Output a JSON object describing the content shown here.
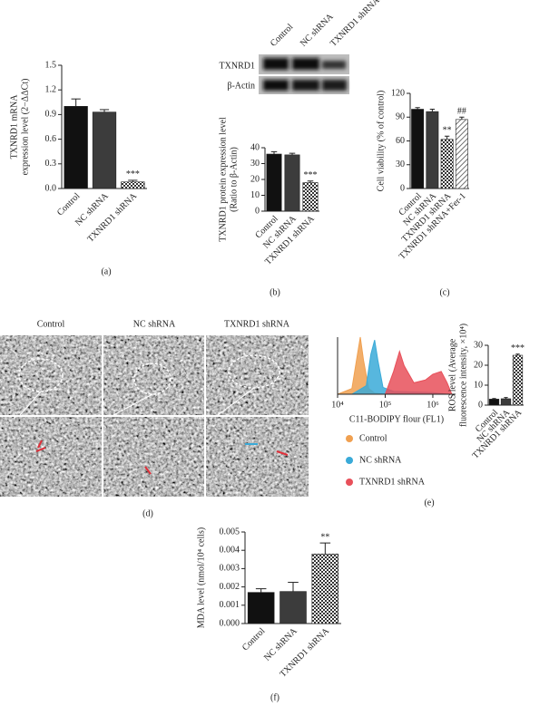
{
  "chart_data": [
    {
      "type": "bar",
      "caption": "(a)",
      "categories": [
        "Control",
        "NC shRNA",
        "TXNRD1 shRNA"
      ],
      "values": [
        1.0,
        0.93,
        0.08
      ],
      "errors": [
        0.09,
        0.03,
        0.02
      ],
      "colors": [
        "#111111",
        "#3c3c3c",
        "checker"
      ],
      "annotations": [
        null,
        null,
        "***"
      ],
      "ylabel": [
        "TXNRD1 mRNA",
        "expression level (2−ΔΔCt)"
      ],
      "ylim": [
        0,
        1.5
      ],
      "yticks": [
        {
          "value": 0,
          "label": "0.0"
        },
        0.3,
        0.6,
        0.9,
        1.2,
        1.5
      ]
    },
    {
      "type": "bar",
      "caption": "(b)",
      "blot_lanes": [
        "Control",
        "NC shRNA",
        "TXNRD1 shRNA"
      ],
      "blot_bands": [
        "TXNRD1",
        "β-Actin"
      ],
      "categories": [
        "Control",
        "NC shRNA",
        "TXNRD1 shRNA"
      ],
      "values": [
        36,
        35.5,
        18
      ],
      "errors": [
        1.5,
        1,
        1
      ],
      "colors": [
        "#111111",
        "#3c3c3c",
        "checker"
      ],
      "annotations": [
        null,
        null,
        "***"
      ],
      "ylabel": [
        "TXNRD1 protein expression level",
        "(Ratio to β-Actin)"
      ],
      "ylim": [
        0,
        40
      ],
      "yticks": [
        0,
        10,
        20,
        30,
        40
      ]
    },
    {
      "type": "bar",
      "caption": "(c)",
      "categories": [
        "Control",
        "NC shRNA",
        "TXNRD1 shRNA",
        "TXNRD1 shRNA+Fer-1"
      ],
      "values": [
        100,
        97,
        62,
        87
      ],
      "errors": [
        2,
        3,
        4,
        3
      ],
      "colors": [
        "#111111",
        "#3c3c3c",
        "checker",
        "hatch"
      ],
      "annotations": [
        null,
        null,
        "**",
        "##"
      ],
      "ylabel": [
        "Cell viability (% of control)"
      ],
      "ylim": [
        0,
        120
      ],
      "yticks": [
        0,
        30,
        60,
        90,
        120
      ]
    },
    {
      "type": "histogram-lines",
      "caption": "(e)",
      "xlabel": "C11-BODIPY flour (FL1)",
      "xscale": "log",
      "xlim": [
        10000,
        3000000
      ],
      "xticks": [
        {
          "value": 10000,
          "label": "10⁴"
        },
        {
          "value": 100000,
          "label": "10⁵"
        },
        {
          "value": 1000000,
          "label": "10⁶"
        }
      ],
      "ylim": [
        0,
        100
      ],
      "series": [
        {
          "name": "Control",
          "color": "#f0a050",
          "x": [
            10000,
            20000,
            25000,
            30000,
            35000,
            45000,
            60000,
            100000
          ],
          "values": [
            0,
            10,
            60,
            100,
            60,
            10,
            2,
            0
          ]
        },
        {
          "name": "NC shRNA",
          "color": "#3aaad8",
          "x": [
            20000,
            40000,
            50000,
            60000,
            70000,
            90000,
            150000,
            1000000,
            2000000
          ],
          "values": [
            0,
            15,
            70,
            95,
            60,
            12,
            5,
            3,
            0
          ]
        },
        {
          "name": "TXNRD1 shRNA",
          "color": "#e8505a",
          "x": [
            100000,
            150000,
            200000,
            250000,
            400000,
            700000,
            1000000,
            1500000,
            2000000,
            2500000
          ],
          "values": [
            0,
            40,
            75,
            50,
            20,
            25,
            35,
            40,
            20,
            0
          ]
        }
      ]
    },
    {
      "type": "bar",
      "categories": [
        "Control",
        "NC shRNA",
        "TXNRD1 shRNA"
      ],
      "values": [
        3,
        3.2,
        25
      ],
      "errors": [
        0.3,
        0.6,
        0.6
      ],
      "colors": [
        "#111111",
        "#3c3c3c",
        "checker"
      ],
      "annotations": [
        null,
        null,
        "***"
      ],
      "ylabel": [
        "ROS level (Average",
        "fluorescence intensity, ×10⁴)"
      ],
      "ylim": [
        0,
        30
      ],
      "yticks": [
        0,
        10,
        20,
        30
      ]
    },
    {
      "type": "bar",
      "caption": "(f)",
      "categories": [
        "Control",
        "NC shRNA",
        "TXNRD1 shRNA"
      ],
      "values": [
        0.0017,
        0.00175,
        0.0038
      ],
      "errors": [
        0.0002,
        0.0005,
        0.0006
      ],
      "colors": [
        "#111111",
        "#3c3c3c",
        "checker"
      ],
      "annotations": [
        null,
        null,
        "**"
      ],
      "ylabel": [
        "MDA level (nmol/10⁴ cells)"
      ],
      "ylim": [
        0,
        0.005
      ],
      "yticks": [
        {
          "value": 0,
          "label": "0.000"
        },
        {
          "value": 0.001,
          "label": "0.001"
        },
        {
          "value": 0.002,
          "label": "0.002"
        },
        {
          "value": 0.003,
          "label": "0.003"
        },
        {
          "value": 0.004,
          "label": "0.004"
        },
        {
          "value": 0.005,
          "label": "0.005"
        }
      ]
    }
  ],
  "micrographs": {
    "labels": [
      "Control",
      "NC shRNA",
      "TXNRD1 shRNA"
    ],
    "caption": "(d)"
  }
}
